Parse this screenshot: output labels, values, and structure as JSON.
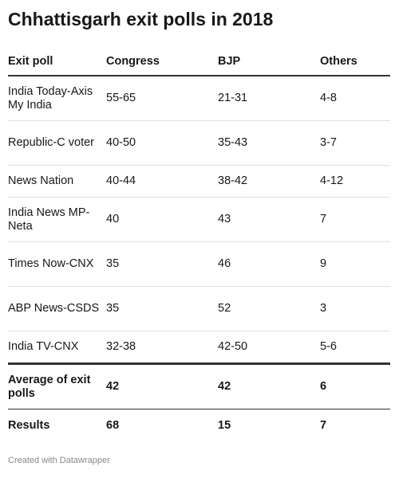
{
  "chart_data": {
    "type": "table",
    "title": "Chhattisgarh exit polls in 2018",
    "columns": [
      "Exit poll",
      "Congress",
      "BJP",
      "Others"
    ],
    "rows": [
      [
        "India Today-Axis My India",
        "55-65",
        "21-31",
        "4-8"
      ],
      [
        "Republic-C voter",
        "40-50",
        "35-43",
        "3-7"
      ],
      [
        "News Nation",
        "40-44",
        "38-42",
        "4-12"
      ],
      [
        "India News MP-Neta",
        "40",
        "43",
        "7"
      ],
      [
        "Times Now-CNX",
        "35",
        "46",
        "9"
      ],
      [
        "ABP News-CSDS",
        "35",
        "52",
        "3"
      ],
      [
        "India TV-CNX",
        "32-38",
        "42-50",
        "5-6"
      ],
      [
        "Average of exit polls",
        "42",
        "42",
        "6"
      ],
      [
        "Results",
        "68",
        "15",
        "7"
      ]
    ]
  },
  "footer": "Created with Datawrapper"
}
